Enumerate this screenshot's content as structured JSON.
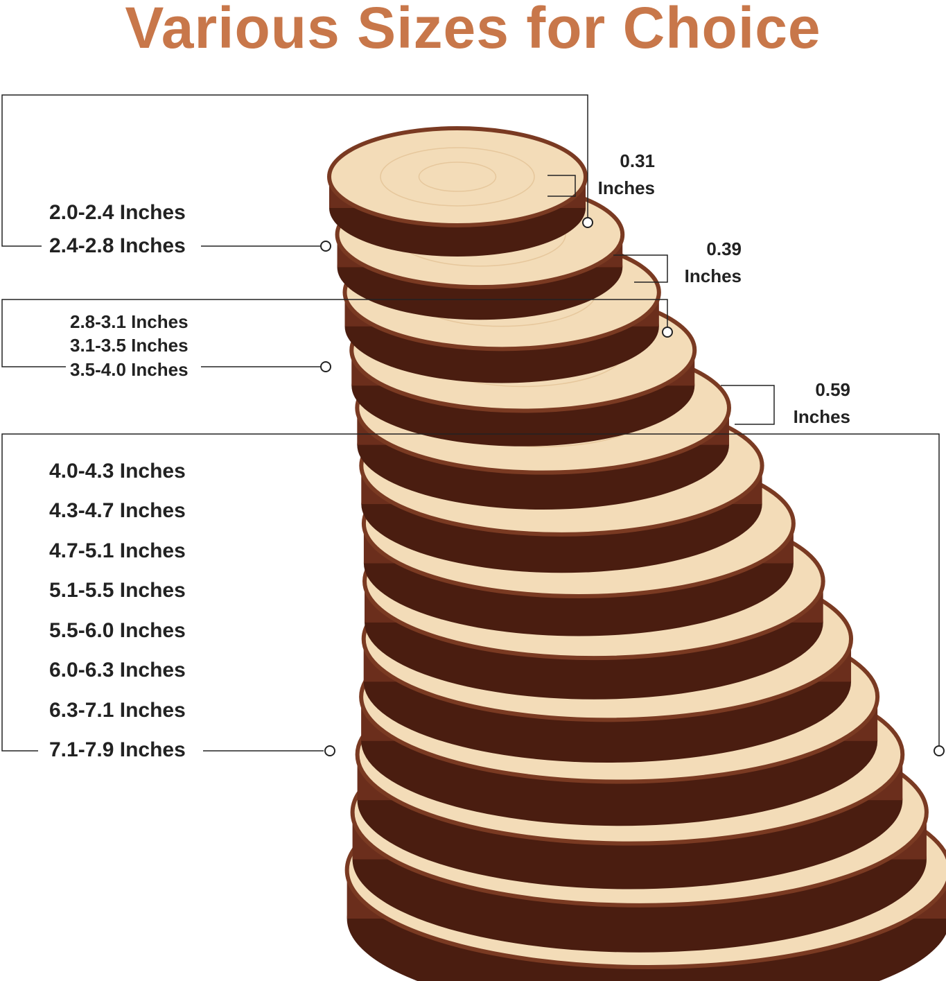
{
  "title": "Various Sizes for Choice",
  "colors": {
    "title": "#c8774a",
    "bark": "#6b2e1c",
    "wood": "#f3dcb8",
    "line": "#222222"
  },
  "groups": [
    {
      "labels": [
        "2.0-2.4 Inches",
        "2.4-2.8 Inches"
      ],
      "thickness": [
        "0.31",
        "Inches"
      ]
    },
    {
      "labels": [
        "2.8-3.1 Inches",
        "3.1-3.5 Inches",
        "3.5-4.0 Inches"
      ],
      "thickness": [
        "0.39",
        "Inches"
      ]
    },
    {
      "labels": [
        "4.0-4.3 Inches",
        "4.3-4.7 Inches",
        "4.7-5.1 Inches",
        "5.1-5.5 Inches",
        "5.5-6.0 Inches",
        "6.0-6.3 Inches",
        "6.3-7.1 Inches",
        "7.1-7.9 Inches"
      ],
      "thickness": [
        "0.59",
        "Inches"
      ]
    }
  ]
}
